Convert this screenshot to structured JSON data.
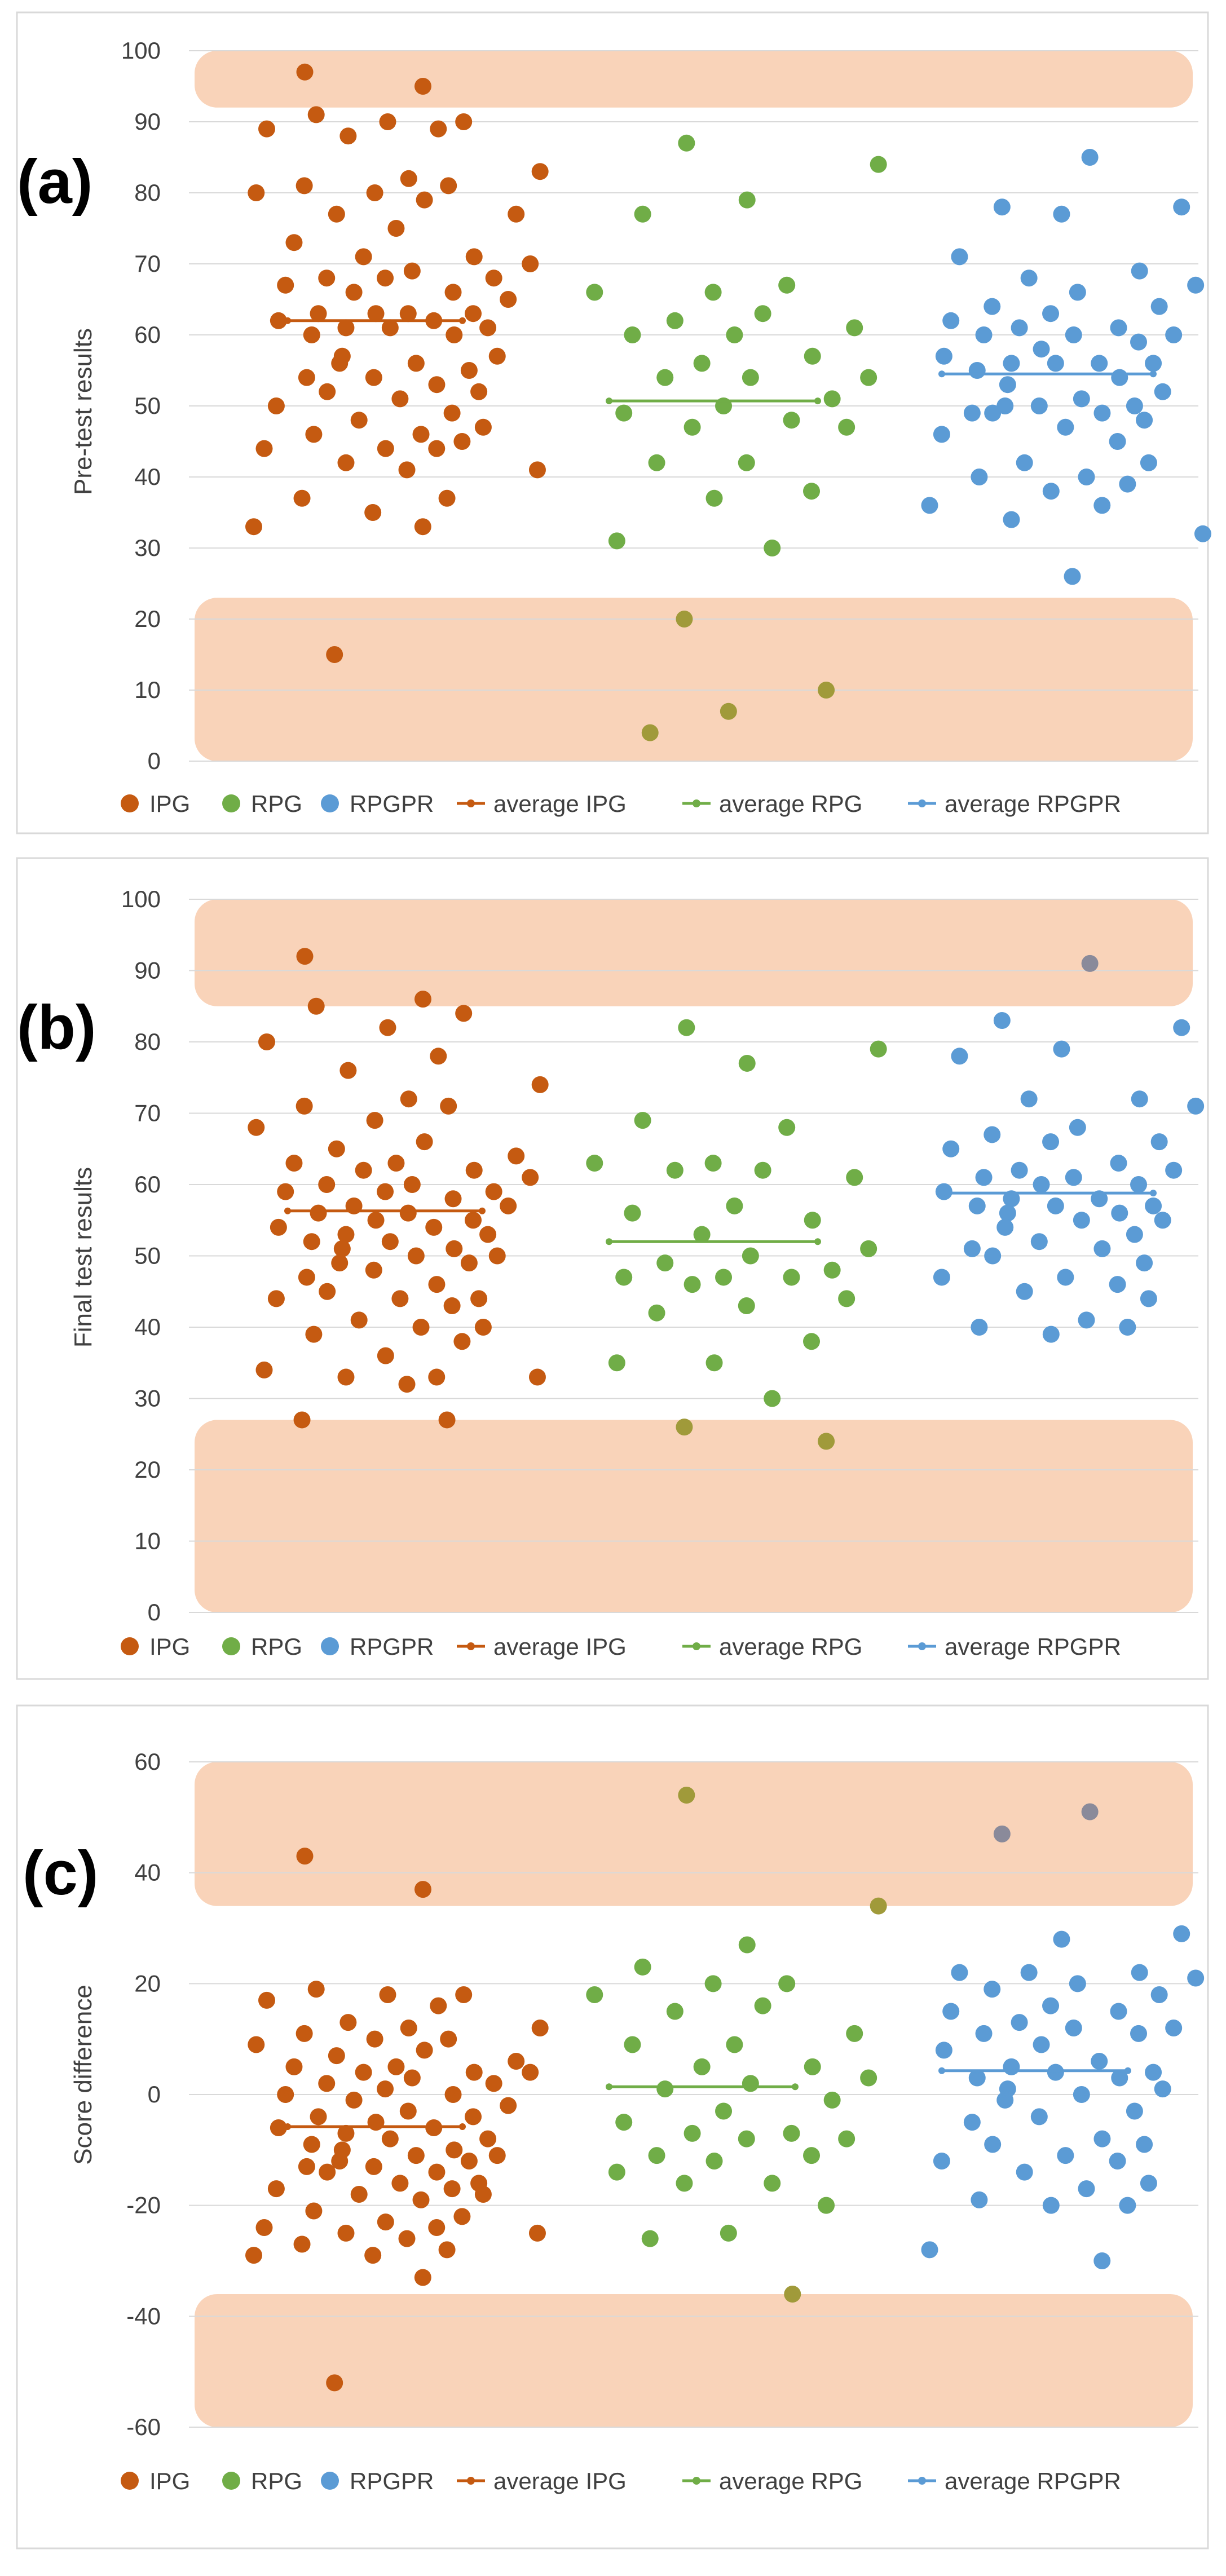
{
  "chart_data": [
    {
      "type": "scatter",
      "panel_label": "(a)",
      "ylabel": "Pre-test results",
      "ylim": [
        0,
        100
      ],
      "yticks": [
        0,
        10,
        20,
        30,
        40,
        50,
        60,
        70,
        80,
        90,
        100
      ],
      "grid": true,
      "highlight_bands": [
        [
          92,
          100
        ],
        [
          0,
          23
        ]
      ],
      "series": [
        {
          "name": "IPG",
          "color": "#c55a11",
          "average": 62,
          "values": [
            97,
            95,
            91,
            90,
            90,
            89,
            89,
            88,
            83,
            82,
            81,
            81,
            80,
            80,
            79,
            77,
            77,
            75,
            73,
            71,
            71,
            70,
            69,
            68,
            68,
            68,
            67,
            66,
            66,
            65,
            63,
            63,
            63,
            63,
            62,
            62,
            61,
            61,
            61,
            60,
            60,
            57,
            57,
            56,
            56,
            55,
            54,
            54,
            53,
            52,
            52,
            51,
            50,
            49,
            48,
            47,
            46,
            46,
            45,
            44,
            44,
            44,
            42,
            41,
            41,
            37,
            37,
            35,
            33,
            33,
            15
          ]
        },
        {
          "name": "RPG",
          "color": "#70ad47",
          "average": 50.7,
          "values": [
            87,
            84,
            79,
            77,
            67,
            66,
            66,
            63,
            62,
            61,
            60,
            60,
            57,
            56,
            54,
            54,
            54,
            51,
            50,
            49,
            48,
            47,
            47,
            42,
            42,
            38,
            37,
            31,
            30,
            20,
            10,
            7,
            4
          ]
        },
        {
          "name": "RPGPR",
          "color": "#5b9bd5",
          "average": 54.5,
          "values": [
            85,
            78,
            78,
            77,
            71,
            69,
            68,
            67,
            66,
            64,
            64,
            63,
            62,
            61,
            61,
            60,
            60,
            60,
            59,
            58,
            57,
            56,
            56,
            56,
            56,
            55,
            54,
            53,
            52,
            51,
            50,
            50,
            50,
            49,
            49,
            49,
            48,
            47,
            46,
            45,
            42,
            42,
            40,
            40,
            39,
            38,
            36,
            36,
            34,
            32,
            26
          ]
        }
      ],
      "legend": [
        "IPG",
        "RPG",
        "RPGPR",
        "average IPG",
        "average RPG",
        "average RPGPR"
      ]
    },
    {
      "type": "scatter",
      "panel_label": "(b)",
      "ylabel": "Final test results",
      "ylim": [
        0,
        100
      ],
      "yticks": [
        0,
        10,
        20,
        30,
        40,
        50,
        60,
        70,
        80,
        90,
        100
      ],
      "grid": true,
      "highlight_bands": [
        [
          85,
          100
        ],
        [
          0,
          27
        ]
      ],
      "series": [
        {
          "name": "IPG",
          "color": "#c55a11",
          "average": 56.3,
          "values": [
            92,
            86,
            85,
            84,
            82,
            80,
            78,
            76,
            74,
            72,
            71,
            71,
            69,
            68,
            66,
            65,
            64,
            63,
            63,
            62,
            62,
            61,
            60,
            60,
            59,
            59,
            59,
            58,
            57,
            57,
            56,
            56,
            55,
            55,
            54,
            54,
            53,
            53,
            52,
            52,
            51,
            51,
            50,
            50,
            49,
            49,
            48,
            47,
            46,
            45,
            44,
            44,
            44,
            43,
            41,
            40,
            40,
            39,
            38,
            36,
            34,
            33,
            33,
            33,
            32,
            27,
            27
          ]
        },
        {
          "name": "RPG",
          "color": "#70ad47",
          "average": 52,
          "values": [
            82,
            79,
            77,
            69,
            68,
            63,
            63,
            62,
            62,
            61,
            57,
            56,
            55,
            53,
            51,
            50,
            49,
            48,
            47,
            47,
            47,
            46,
            44,
            43,
            42,
            38,
            35,
            35,
            30,
            26,
            24
          ]
        },
        {
          "name": "RPGPR",
          "color": "#5b9bd5",
          "average": 58.8,
          "values": [
            91,
            83,
            82,
            79,
            78,
            72,
            72,
            71,
            68,
            67,
            66,
            66,
            65,
            63,
            62,
            62,
            61,
            61,
            60,
            60,
            59,
            58,
            58,
            57,
            57,
            57,
            56,
            56,
            55,
            55,
            54,
            53,
            52,
            51,
            51,
            50,
            49,
            47,
            47,
            46,
            45,
            44,
            41,
            40,
            40,
            39
          ]
        }
      ],
      "legend": [
        "IPG",
        "RPG",
        "RPGPR",
        "average IPG",
        "average RPG",
        "average RPGPR"
      ]
    },
    {
      "type": "scatter",
      "panel_label": "(c)",
      "ylabel": "Score difference",
      "ylim": [
        -60,
        60
      ],
      "yticks": [
        -60,
        -40,
        -20,
        0,
        20,
        40,
        60
      ],
      "grid": true,
      "highlight_bands": [
        [
          34,
          60
        ],
        [
          -60,
          -36
        ]
      ],
      "series": [
        {
          "name": "IPG",
          "color": "#c55a11",
          "average": -5.8,
          "values": [
            43,
            37,
            19,
            18,
            18,
            17,
            16,
            13,
            12,
            12,
            11,
            10,
            10,
            9,
            8,
            7,
            6,
            5,
            5,
            4,
            4,
            4,
            3,
            2,
            2,
            1,
            0,
            0,
            -1,
            -2,
            -3,
            -4,
            -4,
            -5,
            -6,
            -6,
            -7,
            -8,
            -8,
            -9,
            -10,
            -10,
            -11,
            -11,
            -12,
            -12,
            -13,
            -13,
            -14,
            -14,
            -16,
            -16,
            -17,
            -17,
            -18,
            -18,
            -19,
            -21,
            -22,
            -23,
            -24,
            -24,
            -25,
            -25,
            -26,
            -27,
            -28,
            -29,
            -29,
            -33,
            -52
          ]
        },
        {
          "name": "RPG",
          "color": "#70ad47",
          "average": 1.4,
          "values": [
            54,
            34,
            27,
            23,
            20,
            20,
            18,
            16,
            15,
            11,
            9,
            9,
            5,
            5,
            3,
            2,
            1,
            -1,
            -3,
            -5,
            -7,
            -7,
            -8,
            -8,
            -11,
            -11,
            -12,
            -14,
            -16,
            -16,
            -20,
            -25,
            -26,
            -36
          ]
        },
        {
          "name": "RPGPR",
          "color": "#5b9bd5",
          "average": 4.3,
          "values": [
            51,
            47,
            29,
            28,
            22,
            22,
            22,
            21,
            20,
            19,
            18,
            16,
            15,
            15,
            13,
            12,
            12,
            11,
            11,
            9,
            8,
            6,
            5,
            4,
            4,
            3,
            3,
            1,
            1,
            0,
            -1,
            -3,
            -4,
            -5,
            -8,
            -9,
            -9,
            -11,
            -12,
            -12,
            -14,
            -16,
            -17,
            -19,
            -20,
            -20,
            -28,
            -30
          ]
        }
      ],
      "legend": [
        "IPG",
        "RPG",
        "RPGPR",
        "average IPG",
        "average RPG",
        "average RPGPR"
      ]
    }
  ]
}
